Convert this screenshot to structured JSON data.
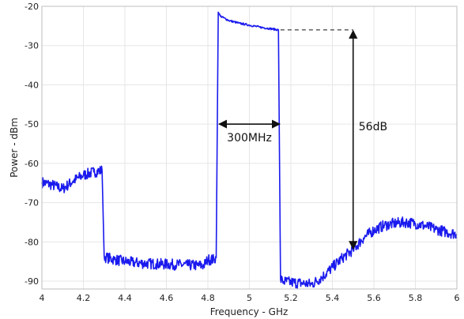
{
  "chart_data": {
    "type": "line",
    "xlabel": "Frequency - GHz",
    "ylabel": "Power - dBm",
    "xlim": [
      4,
      6
    ],
    "ylim": [
      -92,
      -20
    ],
    "x_ticks": [
      "4",
      "4.2",
      "4.4",
      "4.6",
      "4.8",
      "5",
      "5.2",
      "5.4",
      "5.6",
      "5.8",
      "6"
    ],
    "y_ticks": [
      "-20",
      "-30",
      "-40",
      "-50",
      "-60",
      "-70",
      "-80",
      "-90"
    ],
    "grid": true,
    "series": [
      {
        "color": "#1a1aee",
        "x": [
          4.0,
          4.05,
          4.1,
          4.15,
          4.2,
          4.25,
          4.29,
          4.3,
          4.31,
          4.35,
          4.4,
          4.45,
          4.5,
          4.55,
          4.6,
          4.65,
          4.7,
          4.75,
          4.78,
          4.8,
          4.83,
          4.84,
          4.85,
          4.86,
          4.9,
          4.95,
          5.0,
          5.05,
          5.1,
          5.14,
          5.15,
          5.16,
          5.2,
          5.25,
          5.3,
          5.35,
          5.4,
          5.45,
          5.5,
          5.55,
          5.6,
          5.65,
          5.7,
          5.75,
          5.8,
          5.85,
          5.9,
          5.95,
          6.0
        ],
        "y": [
          -64.8,
          -65.5,
          -66.5,
          -64.5,
          -63.0,
          -62.2,
          -61.8,
          -83.5,
          -84.0,
          -84.5,
          -85.0,
          -85.3,
          -85.5,
          -85.6,
          -85.7,
          -85.8,
          -85.9,
          -86.0,
          -86.0,
          -84.5,
          -84.5,
          -84.0,
          -21.5,
          -22.5,
          -23.6,
          -24.3,
          -24.8,
          -25.3,
          -25.7,
          -26.0,
          -89.5,
          -90.0,
          -90.3,
          -90.5,
          -90.8,
          -89.0,
          -86.5,
          -84.0,
          -82.0,
          -79.0,
          -77.0,
          -75.8,
          -75.3,
          -75.0,
          -75.3,
          -76.0,
          -76.8,
          -77.5,
          -78.0
        ]
      }
    ],
    "annotations": [
      {
        "text": "300MHz",
        "x1": 4.85,
        "x2": 5.15,
        "y": -50
      },
      {
        "text": "56dB",
        "x": 5.5,
        "y1": -26,
        "y2": -82,
        "reference_x_start": 5.15
      }
    ]
  }
}
